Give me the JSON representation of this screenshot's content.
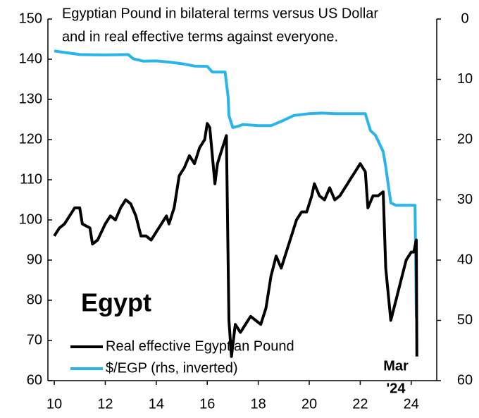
{
  "chart_data": {
    "type": "line",
    "title": [
      "Egyptian Pound in bilateral terms versus US Dollar",
      "and in real effective terms against everyone."
    ],
    "label": "Egypt",
    "annotation": [
      "Mar",
      "'24"
    ],
    "xlim": [
      9.75,
      25
    ],
    "xticks": [
      10,
      12,
      14,
      16,
      18,
      20,
      22,
      24
    ],
    "ylim": [
      60,
      150
    ],
    "yticks": [
      60,
      70,
      80,
      90,
      100,
      110,
      120,
      130,
      140,
      150
    ],
    "y2lim": [
      0,
      60
    ],
    "y2ticks": [
      0,
      10,
      20,
      30,
      40,
      50,
      60
    ],
    "y2_inverted": true,
    "legend": "lower left",
    "series": [
      {
        "name": "Real effective Egyptian Pound",
        "color": "#000000",
        "axis": "y",
        "x": [
          10.0,
          10.2,
          10.4,
          10.6,
          10.8,
          11.0,
          11.1,
          11.4,
          11.5,
          11.7,
          12.0,
          12.2,
          12.4,
          12.6,
          12.8,
          13.0,
          13.2,
          13.4,
          13.6,
          13.8,
          14.0,
          14.2,
          14.4,
          14.5,
          14.7,
          14.9,
          15.1,
          15.3,
          15.5,
          15.7,
          15.9,
          16.0,
          16.1,
          16.3,
          16.4,
          16.6,
          16.75,
          16.85,
          16.95,
          17.1,
          17.3,
          17.5,
          17.7,
          17.9,
          18.1,
          18.3,
          18.5,
          18.7,
          18.9,
          19.1,
          19.3,
          19.5,
          19.7,
          19.9,
          20.1,
          20.2,
          20.4,
          20.6,
          20.8,
          21.0,
          21.2,
          21.4,
          21.6,
          21.8,
          22.0,
          22.2,
          22.3,
          22.5,
          22.7,
          22.9,
          23.0,
          23.2,
          23.4,
          23.6,
          23.8,
          24.0,
          24.1,
          24.2,
          24.22
        ],
        "values": [
          96,
          98,
          99,
          101,
          103,
          103,
          99,
          98,
          94,
          95,
          99,
          101,
          100,
          103,
          105,
          104,
          101,
          96,
          96,
          95,
          97,
          99,
          101,
          99,
          103,
          111,
          113,
          116,
          114,
          118,
          120,
          124,
          123,
          109,
          114,
          118,
          121,
          75,
          66,
          74,
          72,
          74,
          76,
          75,
          74,
          78,
          86,
          91,
          88,
          92,
          96,
          100,
          102,
          102,
          106,
          109,
          106,
          105,
          108,
          105,
          106,
          108,
          110,
          112,
          114,
          112,
          103,
          106,
          106,
          107,
          88,
          75,
          80,
          85,
          90,
          92,
          92,
          95,
          66
        ]
      },
      {
        "name": "$/EGP (rhs, inverted)",
        "color": "#29b5ea",
        "axis": "y2",
        "x": [
          10.0,
          10.5,
          11.0,
          12.0,
          12.9,
          13.1,
          13.5,
          14.0,
          14.5,
          15.0,
          15.5,
          16.0,
          16.2,
          16.7,
          16.82,
          16.85,
          17.0,
          17.2,
          17.4,
          18.0,
          18.5,
          19.0,
          19.4,
          20.0,
          20.5,
          21.0,
          22.0,
          22.2,
          22.4,
          22.6,
          22.9,
          23.0,
          23.2,
          23.4,
          24.0,
          24.15,
          24.2
        ],
        "values": [
          5.3,
          5.6,
          5.9,
          5.95,
          5.9,
          6.6,
          7.0,
          6.95,
          7.15,
          7.4,
          7.8,
          7.85,
          8.8,
          8.8,
          13,
          16,
          18,
          17.8,
          17.5,
          17.7,
          17.7,
          16.8,
          16.0,
          15.7,
          15.6,
          15.7,
          15.7,
          15.7,
          18.5,
          19.3,
          22,
          24.5,
          30.5,
          30.9,
          30.9,
          30.9,
          49.5
        ]
      }
    ]
  }
}
